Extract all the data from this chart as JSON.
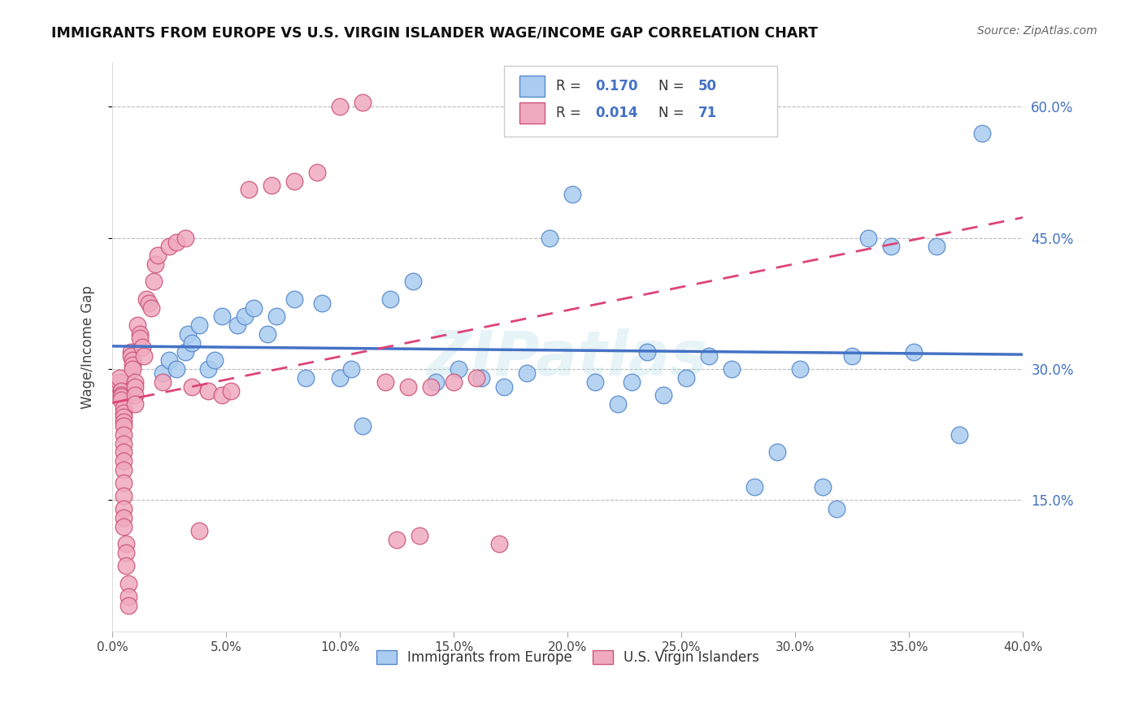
{
  "title": "IMMIGRANTS FROM EUROPE VS U.S. VIRGIN ISLANDER WAGE/INCOME GAP CORRELATION CHART",
  "source": "Source: ZipAtlas.com",
  "ylabel": "Wage/Income Gap",
  "xlim": [
    0.0,
    0.4
  ],
  "ylim": [
    0.0,
    0.65
  ],
  "yticks": [
    0.15,
    0.3,
    0.45,
    0.6
  ],
  "ytick_labels": [
    "15.0%",
    "30.0%",
    "45.0%",
    "60.0%"
  ],
  "xtick_labels": [
    "0.0%",
    "5.0%",
    "10.0%",
    "15.0%",
    "20.0%",
    "25.0%",
    "30.0%",
    "35.0%",
    "40.0%"
  ],
  "blue_color": "#aaccf0",
  "blue_edge_color": "#5588cc",
  "blue_line_color": "#4472c4",
  "pink_color": "#f0aac0",
  "pink_edge_color": "#cc5577",
  "pink_line_color": "#dd4477",
  "legend_R_blue": "0.170",
  "legend_N_blue": "50",
  "legend_R_pink": "0.014",
  "legend_N_pink": "71",
  "watermark": "ZIPatlas",
  "blue_scatter_x": [
    0.022,
    0.025,
    0.028,
    0.032,
    0.033,
    0.035,
    0.038,
    0.042,
    0.045,
    0.048,
    0.055,
    0.058,
    0.062,
    0.068,
    0.072,
    0.08,
    0.085,
    0.092,
    0.1,
    0.105,
    0.11,
    0.122,
    0.132,
    0.142,
    0.152,
    0.162,
    0.172,
    0.182,
    0.192,
    0.202,
    0.212,
    0.222,
    0.228,
    0.235,
    0.242,
    0.252,
    0.262,
    0.272,
    0.282,
    0.292,
    0.302,
    0.312,
    0.318,
    0.325,
    0.332,
    0.342,
    0.352,
    0.362,
    0.372,
    0.382
  ],
  "blue_scatter_y": [
    0.295,
    0.31,
    0.3,
    0.32,
    0.34,
    0.33,
    0.35,
    0.3,
    0.31,
    0.36,
    0.35,
    0.36,
    0.37,
    0.34,
    0.36,
    0.38,
    0.29,
    0.375,
    0.29,
    0.3,
    0.235,
    0.38,
    0.4,
    0.285,
    0.3,
    0.29,
    0.28,
    0.295,
    0.45,
    0.5,
    0.285,
    0.26,
    0.285,
    0.32,
    0.27,
    0.29,
    0.315,
    0.3,
    0.165,
    0.205,
    0.3,
    0.165,
    0.14,
    0.315,
    0.45,
    0.44,
    0.32,
    0.44,
    0.225,
    0.57
  ],
  "pink_scatter_x": [
    0.003,
    0.003,
    0.003,
    0.004,
    0.004,
    0.004,
    0.004,
    0.005,
    0.005,
    0.005,
    0.005,
    0.005,
    0.005,
    0.005,
    0.005,
    0.005,
    0.005,
    0.005,
    0.005,
    0.005,
    0.005,
    0.005,
    0.006,
    0.006,
    0.006,
    0.007,
    0.007,
    0.007,
    0.008,
    0.008,
    0.009,
    0.009,
    0.009,
    0.01,
    0.01,
    0.01,
    0.01,
    0.011,
    0.012,
    0.012,
    0.013,
    0.014,
    0.015,
    0.016,
    0.017,
    0.018,
    0.019,
    0.02,
    0.022,
    0.025,
    0.028,
    0.032,
    0.035,
    0.038,
    0.042,
    0.048,
    0.052,
    0.06,
    0.07,
    0.08,
    0.09,
    0.1,
    0.11,
    0.12,
    0.13,
    0.14,
    0.15,
    0.16,
    0.17,
    0.125,
    0.135
  ],
  "pink_scatter_y": [
    0.28,
    0.285,
    0.29,
    0.275,
    0.27,
    0.268,
    0.265,
    0.255,
    0.25,
    0.245,
    0.24,
    0.235,
    0.225,
    0.215,
    0.205,
    0.195,
    0.185,
    0.17,
    0.155,
    0.14,
    0.13,
    0.12,
    0.1,
    0.09,
    0.075,
    0.055,
    0.04,
    0.03,
    0.32,
    0.315,
    0.31,
    0.305,
    0.3,
    0.285,
    0.28,
    0.27,
    0.26,
    0.35,
    0.34,
    0.335,
    0.325,
    0.315,
    0.38,
    0.375,
    0.37,
    0.4,
    0.42,
    0.43,
    0.285,
    0.44,
    0.445,
    0.45,
    0.28,
    0.115,
    0.275,
    0.27,
    0.275,
    0.505,
    0.51,
    0.515,
    0.525,
    0.6,
    0.605,
    0.285,
    0.28,
    0.28,
    0.285,
    0.29,
    0.1,
    0.105,
    0.11
  ]
}
